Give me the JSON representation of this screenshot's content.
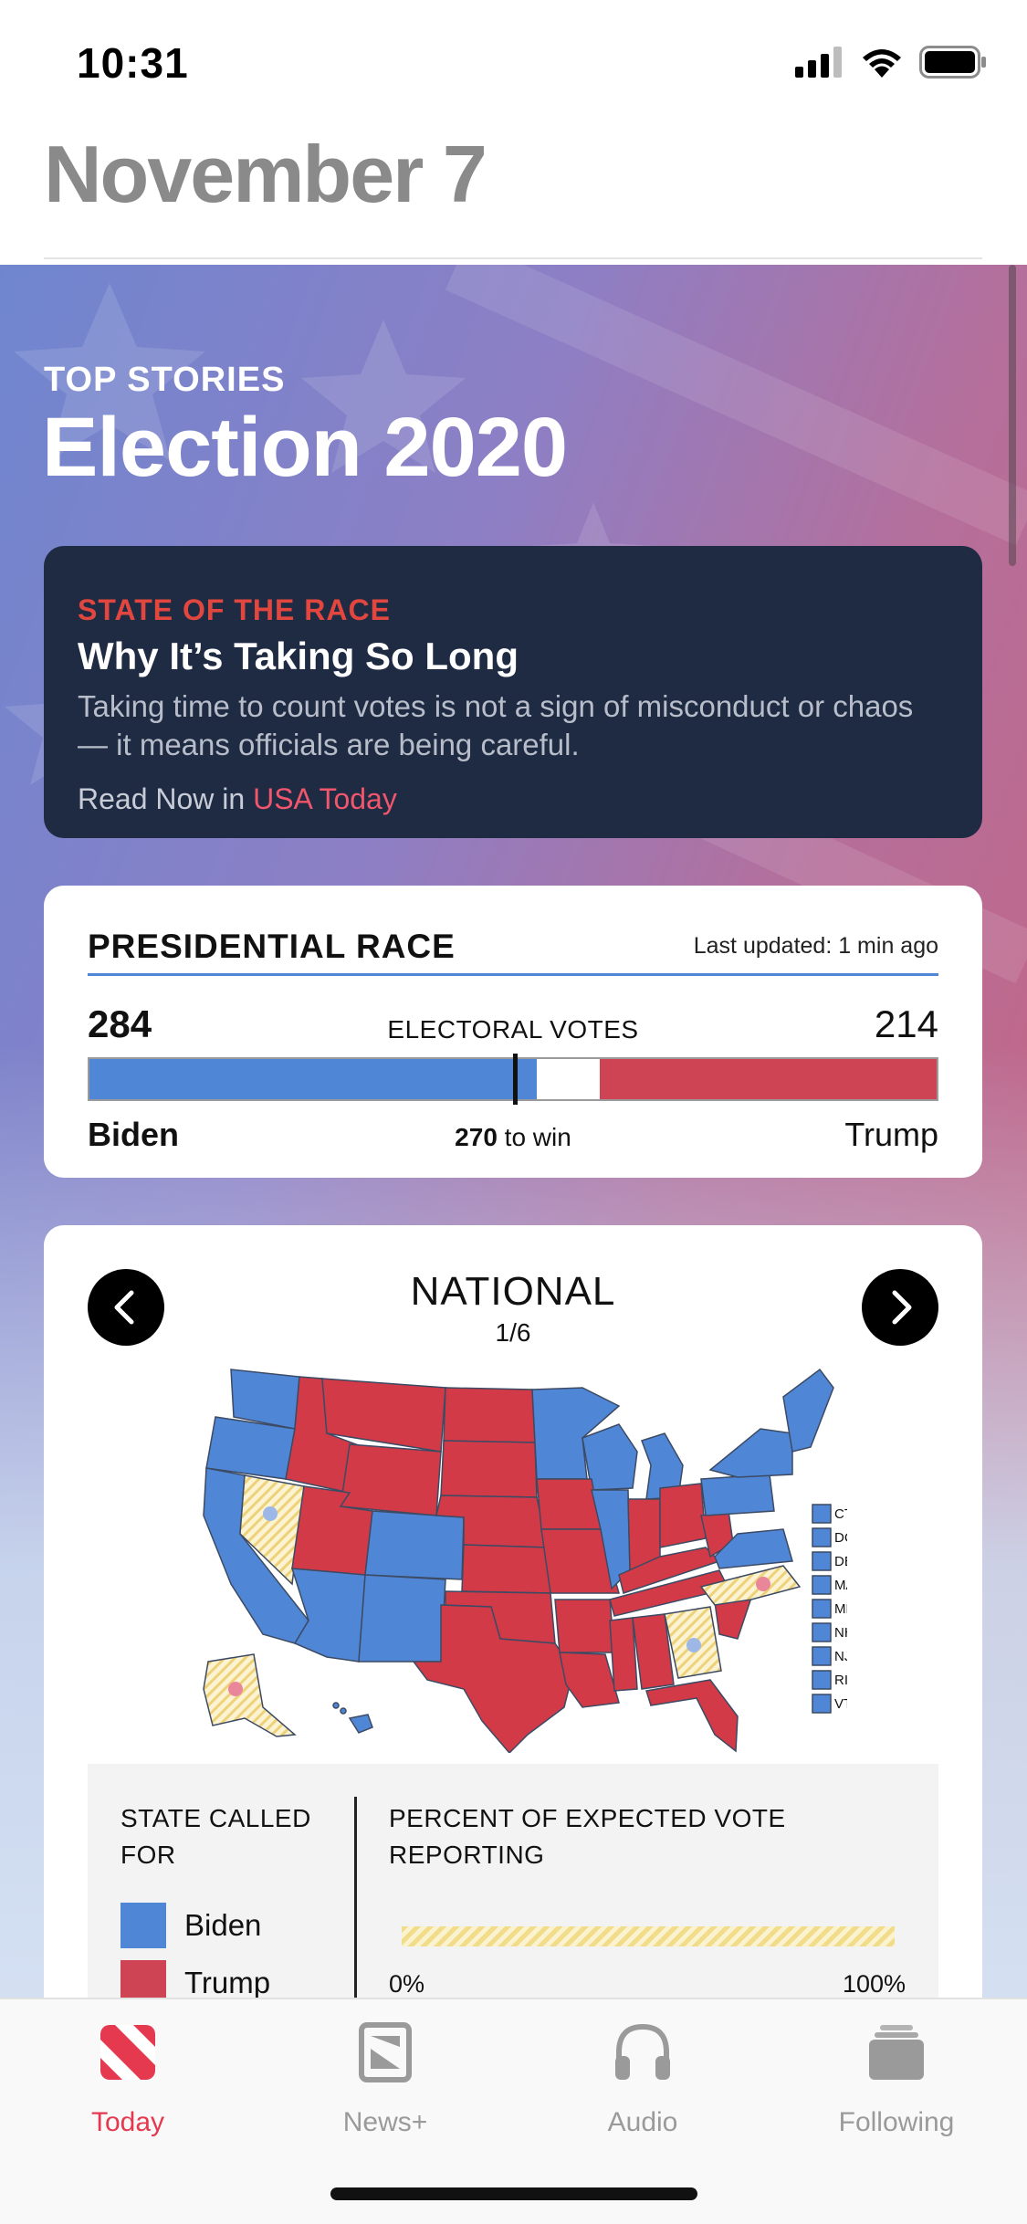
{
  "status_bar": {
    "time": "10:31"
  },
  "header": {
    "date": "November 7"
  },
  "hero": {
    "section_label": "TOP STORIES",
    "section_title": "Election 2020"
  },
  "story": {
    "kicker": "STATE OF THE RACE",
    "headline": "Why It’s Taking So Long",
    "dek": "Taking time to count votes is not a sign of misconduct or chaos — it means officials are being careful.",
    "read_prefix": "Read Now in",
    "publisher": "USA Today"
  },
  "race": {
    "title": "PRESIDENTIAL RACE",
    "updated": "Last updated: 1 min ago",
    "center_label": "ELECTORAL VOTES",
    "biden_votes": "284",
    "trump_votes": "214",
    "biden_name": "Biden",
    "trump_name": "Trump",
    "to_win_number": "270",
    "to_win_suffix": "to win",
    "total_votes": 538,
    "biden_value": 284,
    "trump_value": 214,
    "win_value": 270,
    "colors": {
      "biden": "#4f86d6",
      "trump": "#cf4455"
    }
  },
  "map": {
    "title": "NATIONAL",
    "page": "1/6",
    "small_states": [
      "CT",
      "DC",
      "DE",
      "MA",
      "MD",
      "NH",
      "NJ",
      "RI",
      "VT"
    ],
    "colors": {
      "dem": "#4f86d6",
      "rep": "#d23a48",
      "uncalled": "#f6e7a9"
    }
  },
  "legend": {
    "called_heading": "STATE CALLED FOR",
    "reporting_heading": "PERCENT OF EXPECTED VOTE REPORTING",
    "items": [
      {
        "label": "Biden",
        "color": "#4f86d6"
      },
      {
        "label": "Trump",
        "color": "#cf4455"
      }
    ],
    "pct_min": "0%",
    "pct_max": "100%"
  },
  "tabs": [
    {
      "label": "Today",
      "icon": "news-icon",
      "active": true
    },
    {
      "label": "News+",
      "icon": "news-plus-icon",
      "active": false
    },
    {
      "label": "Audio",
      "icon": "headphones-icon",
      "active": false
    },
    {
      "label": "Following",
      "icon": "following-icon",
      "active": false
    }
  ]
}
